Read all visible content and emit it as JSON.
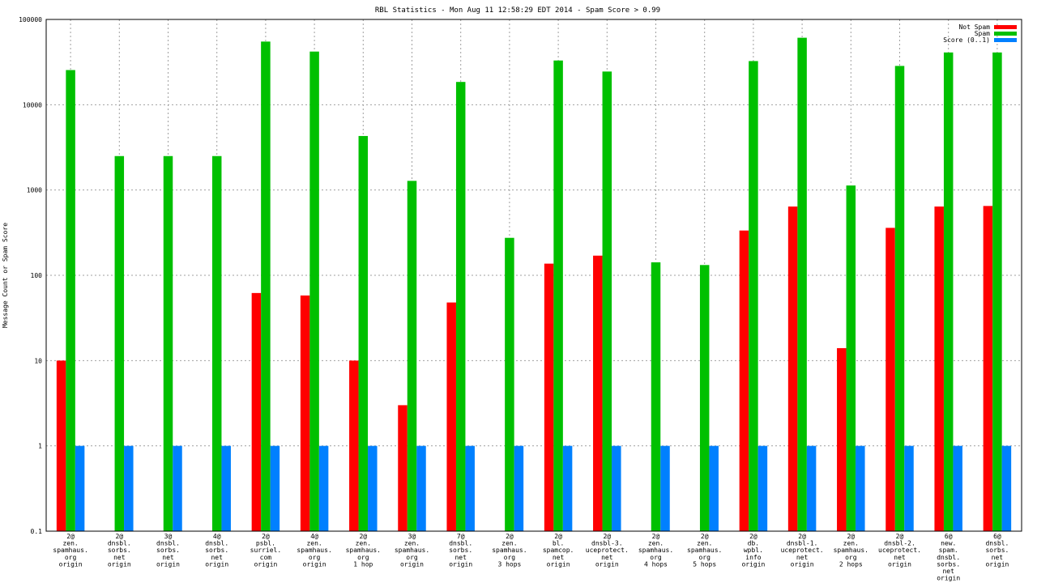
{
  "chart_data": {
    "type": "bar",
    "title": "RBL Statistics - Mon Aug 11 12:58:29 EDT 2014 - Spam Score > 0.99",
    "ylabel": "Message Count or Spam Score",
    "xlabel": "",
    "yscale": "log",
    "ylim": [
      0.1,
      100000
    ],
    "yticks": [
      {
        "value": 0.1,
        "label": "0.1"
      },
      {
        "value": 1,
        "label": "1"
      },
      {
        "value": 10,
        "label": "10"
      },
      {
        "value": 100,
        "label": "100"
      },
      {
        "value": 1000,
        "label": "1000"
      },
      {
        "value": 10000,
        "label": "10000"
      },
      {
        "value": 100000,
        "label": "100000"
      }
    ],
    "grid": true,
    "legend_position": "top-right",
    "categories": [
      [
        "2@",
        "zen.",
        "spamhaus.",
        "org",
        "origin"
      ],
      [
        "2@",
        "dnsbl.",
        "sorbs.",
        "net",
        "origin"
      ],
      [
        "3@",
        "dnsbl.",
        "sorbs.",
        "net",
        "origin"
      ],
      [
        "4@",
        "dnsbl.",
        "sorbs.",
        "net",
        "origin"
      ],
      [
        "2@",
        "psbl.",
        "surriel.",
        "com",
        "origin"
      ],
      [
        "4@",
        "zen.",
        "spamhaus.",
        "org",
        "origin"
      ],
      [
        "2@",
        "zen.",
        "spamhaus.",
        "org",
        "1 hop"
      ],
      [
        "3@",
        "zen.",
        "spamhaus.",
        "org",
        "origin"
      ],
      [
        "7@",
        "dnsbl.",
        "sorbs.",
        "net",
        "origin"
      ],
      [
        "2@",
        "zen.",
        "spamhaus.",
        "org",
        "3 hops"
      ],
      [
        "2@",
        "bl.",
        "spamcop.",
        "net",
        "origin"
      ],
      [
        "2@",
        "dnsbl-3.",
        "uceprotect.",
        "net",
        "origin"
      ],
      [
        "2@",
        "zen.",
        "spamhaus.",
        "org",
        "4 hops"
      ],
      [
        "2@",
        "zen.",
        "spamhaus.",
        "org",
        "5 hops"
      ],
      [
        "2@",
        "db.",
        "wpbl.",
        "info",
        "origin"
      ],
      [
        "2@",
        "dnsbl-1.",
        "uceprotect.",
        "net",
        "origin"
      ],
      [
        "2@",
        "zen.",
        "spamhaus.",
        "org",
        "2 hops"
      ],
      [
        "2@",
        "dnsbl-2.",
        "uceprotect.",
        "net",
        "origin"
      ],
      [
        "6@",
        "new.",
        "spam.",
        "dnsbl.",
        "sorbs.",
        "net",
        "origin"
      ],
      [
        "6@",
        "dnsbl.",
        "sorbs.",
        "net",
        "origin"
      ]
    ],
    "series": [
      {
        "name": "Not Spam",
        "color": "#ff0000",
        "values": [
          10,
          null,
          null,
          null,
          62,
          58,
          10,
          3,
          48,
          null,
          137,
          170,
          null,
          null,
          335,
          640,
          14,
          360,
          640,
          650
        ]
      },
      {
        "name": "Spam",
        "color": "#00c000",
        "values": [
          25500,
          2500,
          2500,
          2500,
          55000,
          42000,
          4300,
          1280,
          18500,
          275,
          33000,
          24500,
          142,
          132,
          32500,
          61000,
          1130,
          28500,
          41000,
          41000
        ]
      },
      {
        "name": "Score (0..1)",
        "color": "#0080ff",
        "values": [
          1,
          1,
          1,
          1,
          1,
          1,
          1,
          1,
          1,
          1,
          1,
          1,
          1,
          1,
          1,
          1,
          1,
          1,
          1,
          1
        ]
      }
    ]
  }
}
